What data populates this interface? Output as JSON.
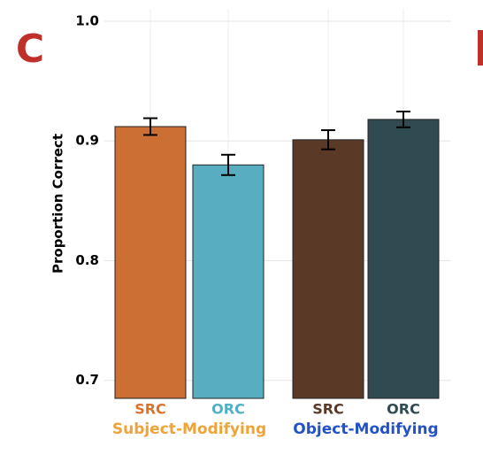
{
  "chart_data": {
    "type": "bar",
    "panel_label": "C",
    "y_label": "Proportion Correct",
    "categories": [
      "SRC",
      "ORC",
      "SRC",
      "ORC"
    ],
    "category_colors": [
      "#d9732e",
      "#4fb0c6",
      "#5a3a27",
      "#2f4a50"
    ],
    "groups": [
      {
        "label": "Subject-Modifying",
        "color": "#eea43a"
      },
      {
        "label": "Object-Modifying",
        "color": "#2253c8"
      }
    ],
    "values": [
      0.912,
      0.88,
      0.901,
      0.918
    ],
    "errors": [
      0.007,
      0.0085,
      0.008,
      0.0066
    ],
    "colors": [
      "#cc6f35",
      "#58adc0",
      "#5a3a27",
      "#2f4a50"
    ],
    "ylim": [
      0.685,
      1.0
    ],
    "yticks": [
      0.7,
      0.8,
      0.9,
      {
        "value": 1,
        "label": "1.0"
      }
    ],
    "grid": true
  }
}
